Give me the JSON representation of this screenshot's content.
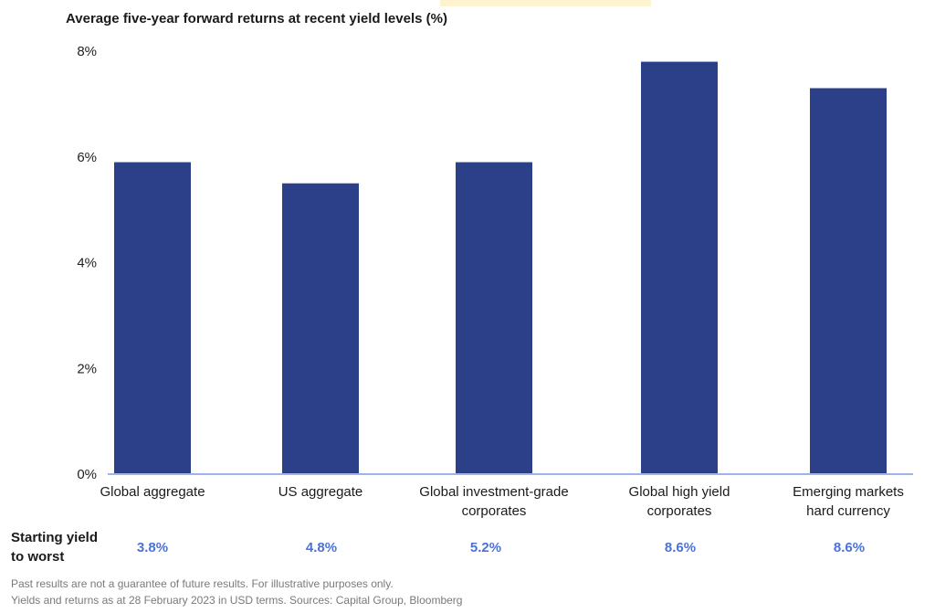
{
  "chart_data": {
    "type": "bar",
    "title": "Average five-year forward returns at recent yield levels (%)",
    "categories": [
      [
        "Global aggregate"
      ],
      [
        "US aggregate"
      ],
      [
        "Global investment-grade",
        "corporates"
      ],
      [
        "Global high yield",
        "corporates"
      ],
      [
        "Emerging markets",
        "hard currency"
      ]
    ],
    "values": [
      5.9,
      5.5,
      5.9,
      7.8,
      7.3
    ],
    "ylim": [
      0,
      8
    ],
    "yticks": [
      0,
      2,
      4,
      6,
      8
    ],
    "ytick_labels": [
      "0%",
      "2%",
      "4%",
      "6%",
      "8%"
    ],
    "grid": false,
    "bar_color": "#2b4088",
    "axis_color": "#9fb3e8"
  },
  "yield_row": {
    "heading_line1": "Starting yield",
    "heading_line2": "to worst",
    "values": [
      "3.8%",
      "4.8%",
      "5.2%",
      "8.6%",
      "8.6%"
    ],
    "value_color": "#4a72d9"
  },
  "footnotes": {
    "line1": "Past results are not a guarantee of future results. For illustrative purposes only.",
    "line2": "Yields and returns as at 28 February 2023 in USD terms. Sources: Capital Group, Bloomberg"
  }
}
